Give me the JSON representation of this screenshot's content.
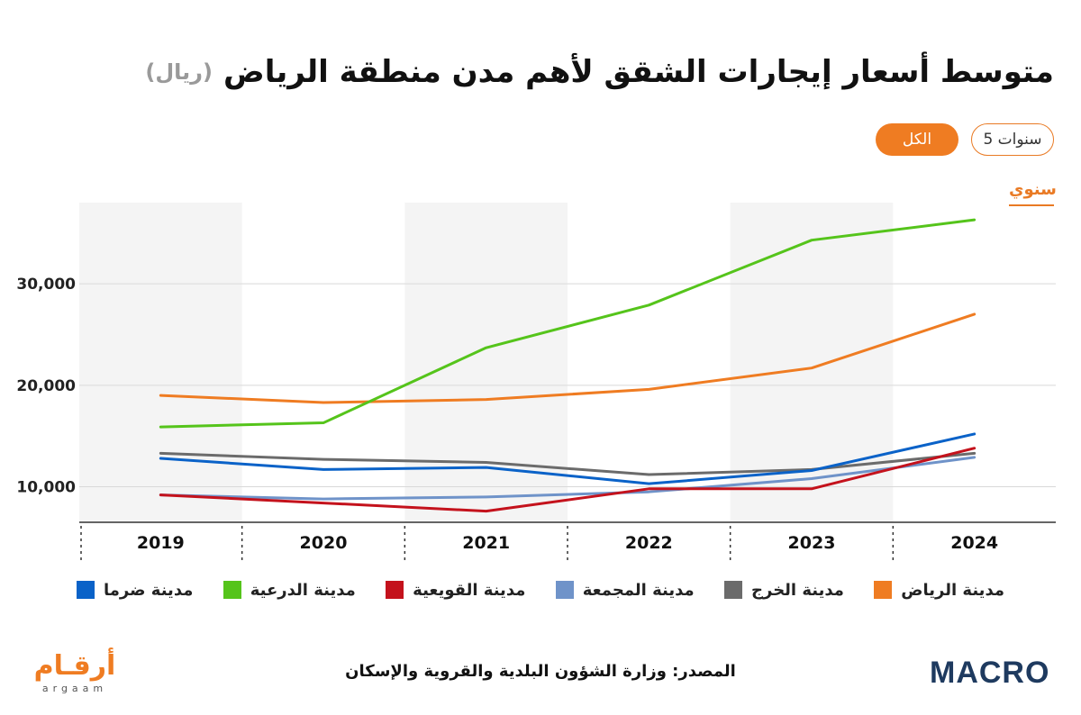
{
  "title": "متوسط أسعار إيجارات الشقق لأهم مدن منطقة الرياض",
  "unit": "(ريال)",
  "range_buttons": {
    "five_years": "5 سنوات",
    "all": "الكل"
  },
  "frequency_tab": "سنوي",
  "source": "المصدر: وزارة الشؤون البلدية والقروية والإسكان",
  "logos": {
    "argaam_ar": "أرقـام",
    "argaam_en": "argaam",
    "macro": "MACRO"
  },
  "colors": {
    "riyadh": "#ef7c22",
    "kharj": "#6b6b6b",
    "majmaah": "#6f93c9",
    "quwayiyah": "#c4121c",
    "diriyah": "#55c41b",
    "dhurma": "#0a62c8",
    "accent": "#ef7c22",
    "band": "#f4f4f4"
  },
  "chart_data": {
    "type": "line",
    "x": [
      "2019",
      "2020",
      "2021",
      "2022",
      "2023",
      "2024"
    ],
    "ylim": [
      6500,
      38000
    ],
    "yticks": [
      10000,
      20000,
      30000
    ],
    "ytick_labels": [
      "10,000",
      "20,000",
      "30,000"
    ],
    "grid": true,
    "legend_position": "bottom",
    "series": [
      {
        "name": "مدينة الرياض",
        "color_key": "riyadh",
        "values": [
          19000,
          18300,
          18600,
          19600,
          21700,
          27000
        ]
      },
      {
        "name": "مدينة  الخرج",
        "color_key": "kharj",
        "values": [
          13300,
          12700,
          12400,
          11200,
          11700,
          13300
        ]
      },
      {
        "name": "مدينة  المجمعة",
        "color_key": "majmaah",
        "values": [
          9200,
          8800,
          9000,
          9500,
          10800,
          12900
        ]
      },
      {
        "name": "مدينة  القويعية",
        "color_key": "quwayiyah",
        "values": [
          9200,
          8400,
          7600,
          9800,
          9800,
          13800
        ]
      },
      {
        "name": "مدينة  الدرعية",
        "color_key": "diriyah",
        "values": [
          15900,
          16300,
          23700,
          27900,
          34300,
          36300
        ]
      },
      {
        "name": "مدينة  ضرما",
        "color_key": "dhurma",
        "values": [
          12800,
          11700,
          11900,
          10300,
          11600,
          15200
        ]
      }
    ]
  }
}
